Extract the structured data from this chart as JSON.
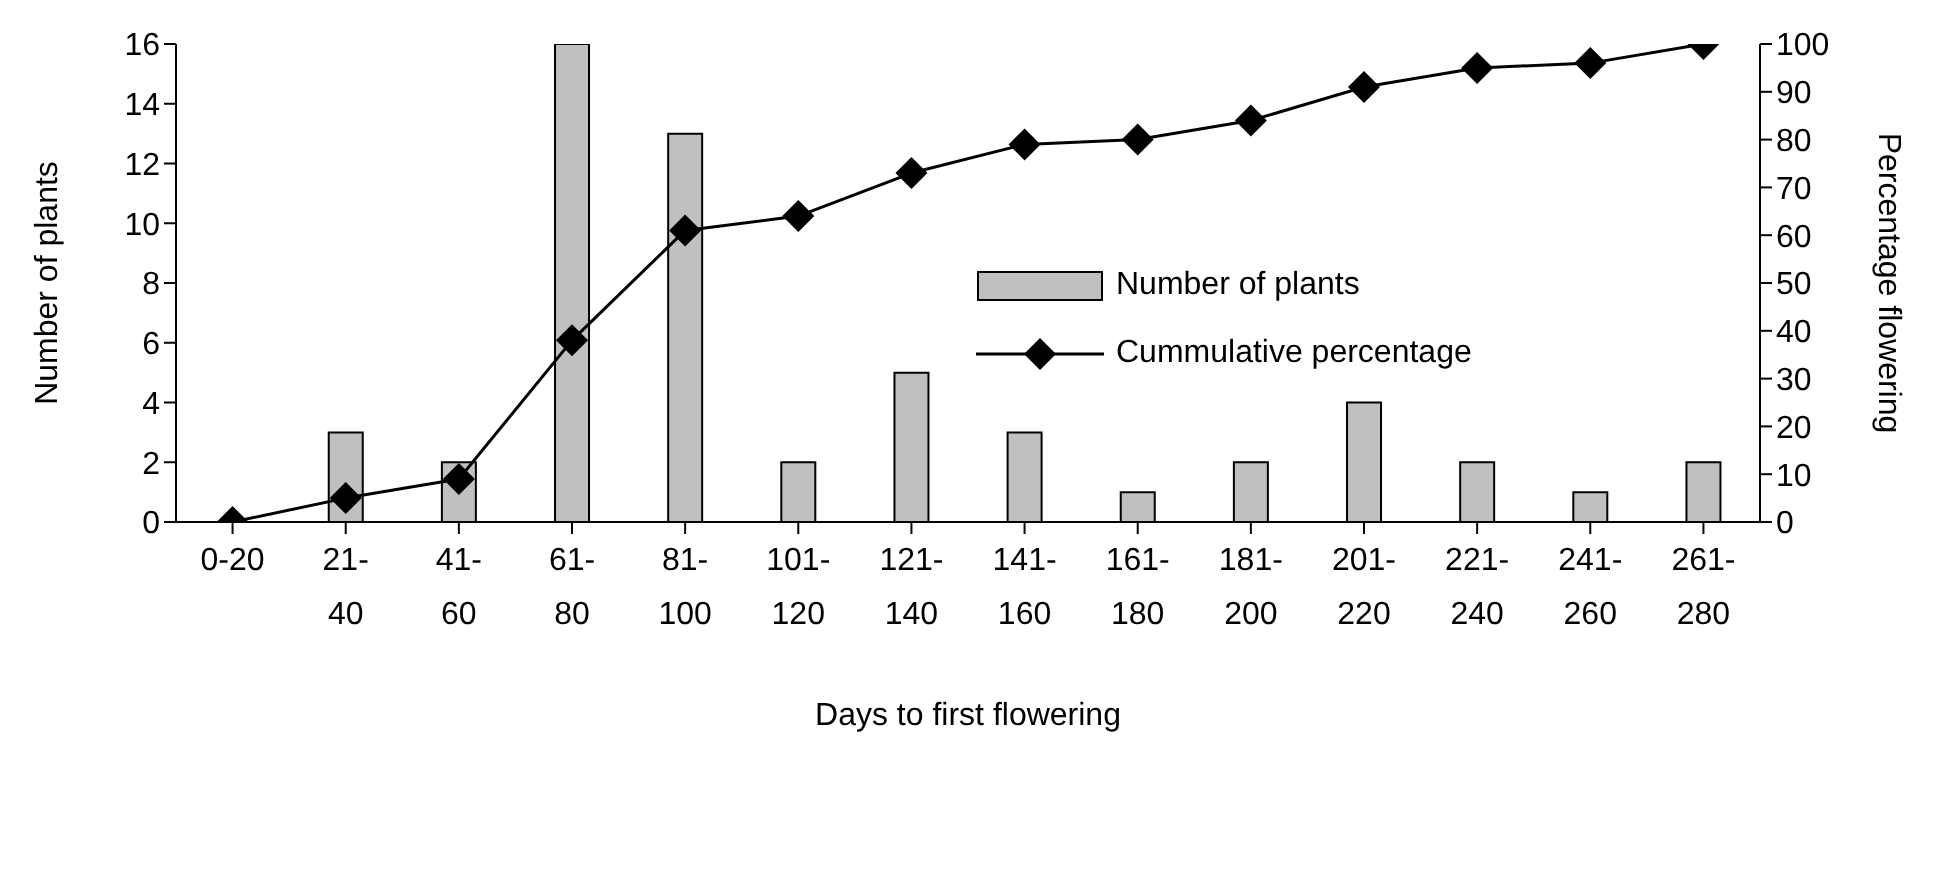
{
  "chart_data": {
    "type": "bar",
    "xlabel": "Days to first flowering",
    "ylabel": "Number of plants",
    "y2label": "Percentage flowering",
    "categories": [
      "0-20",
      "21-\n40",
      "41-\n60",
      "61-\n80",
      "81-\n100",
      "101-\n120",
      "121-\n140",
      "141-\n160",
      "161-\n180",
      "181-\n200",
      "201-\n220",
      "221-\n240",
      "241-\n260",
      "261-\n280"
    ],
    "series": [
      {
        "name": "Number of plants",
        "color": "#c0c0c0",
        "values": [
          0,
          3,
          2,
          16,
          13,
          2,
          5,
          3,
          1,
          2,
          4,
          2,
          1,
          2
        ]
      },
      {
        "name": "Cummulative percentage",
        "type": "line",
        "axis": "y2",
        "color": "#000000",
        "marker": "diamond",
        "values": [
          0,
          5,
          9,
          38,
          61,
          64,
          73,
          79,
          80,
          84,
          91,
          95,
          96,
          100
        ]
      }
    ],
    "ylim": [
      0,
      16
    ],
    "yticks": [
      0,
      2,
      4,
      6,
      8,
      10,
      12,
      14,
      16
    ],
    "y2lim": [
      0,
      100
    ],
    "y2ticks": [
      0,
      10,
      20,
      30,
      40,
      50,
      60,
      70,
      80,
      90,
      100
    ],
    "legend": "right"
  }
}
